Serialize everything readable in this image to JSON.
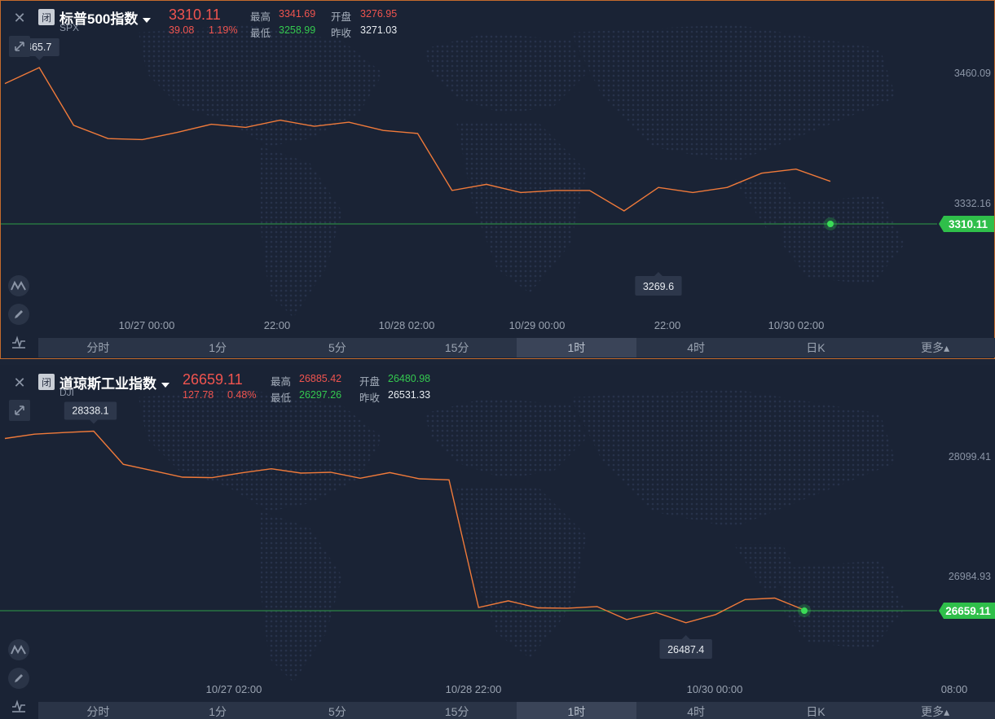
{
  "icons": {
    "close": "close-icon",
    "expand": "expand-icon",
    "indicator": "indicator-icon",
    "draw": "pencil-icon",
    "line": "line-chart-icon"
  },
  "colors": {
    "up": "#f0544f",
    "down": "#34c94f",
    "line": "#f07a3a",
    "current_line": "#2f9e47"
  },
  "timeframes": [
    "分时",
    "1分",
    "5分",
    "15分",
    "1时",
    "4时",
    "日K",
    "更多▴"
  ],
  "active_timeframe": "1时",
  "charts": [
    {
      "closed_badge": "闭",
      "name": "标普500指数",
      "symbol": "SPX",
      "price": "3310.11",
      "change": "39.08",
      "change_pct": "1.19%",
      "stats": {
        "high_label": "最高",
        "high": "3341.69",
        "open_label": "开盘",
        "open": "3276.95",
        "low_label": "最低",
        "low": "3258.99",
        "prev_close_label": "昨收",
        "prev_close": "3271.03"
      },
      "max_marker": "3465.7",
      "min_marker": "3269.6",
      "current_tag": "3310.11",
      "y_ticks": [
        "3460.09",
        "3332.16"
      ],
      "x_ticks": [
        "10/27 00:00",
        "22:00",
        "10/28 02:00",
        "10/29 00:00",
        "22:00",
        "10/30 02:00"
      ]
    },
    {
      "closed_badge": "闭",
      "name": "道琼斯工业指数",
      "symbol": "DJI",
      "price": "26659.11",
      "change": "127.78",
      "change_pct": "0.48%",
      "stats": {
        "high_label": "最高",
        "high": "26885.42",
        "open_label": "开盘",
        "open": "26480.98",
        "low_label": "最低",
        "low": "26297.26",
        "prev_close_label": "昨收",
        "prev_close": "26531.33"
      },
      "max_marker": "28338.1",
      "min_marker": "26487.4",
      "current_tag": "26659.11",
      "y_ticks": [
        "28099.41",
        "26984.93"
      ],
      "x_ticks": [
        "10/27 02:00",
        "10/28 22:00",
        "10/30 00:00",
        "08:00"
      ]
    }
  ],
  "chart_data": [
    {
      "type": "line",
      "series": [
        {
          "values": [
            3450,
            3465.7,
            3409,
            3396,
            3395,
            3402,
            3410,
            3407,
            3414,
            3408,
            3412,
            3404,
            3401,
            3345,
            3351,
            3343,
            3345,
            3345,
            3325,
            3348,
            3343,
            3348,
            3362,
            3366,
            3354
          ]
        }
      ],
      "yticks": [
        3460.09,
        3332.16
      ],
      "xlabel": "",
      "ylabel": ""
    },
    {
      "type": "line",
      "series": [
        {
          "values": [
            28270,
            28310,
            28325,
            28338.1,
            28030,
            27970,
            27910,
            27905,
            27950,
            27988,
            27948,
            27955,
            27900,
            27952,
            27895,
            27885,
            26696,
            26758,
            26693,
            26690,
            26705,
            26584,
            26650,
            26554,
            26630,
            26770,
            26784,
            26673
          ]
        }
      ],
      "yticks": [
        28099.41,
        26984.93
      ],
      "xlabel": "",
      "ylabel": ""
    }
  ]
}
